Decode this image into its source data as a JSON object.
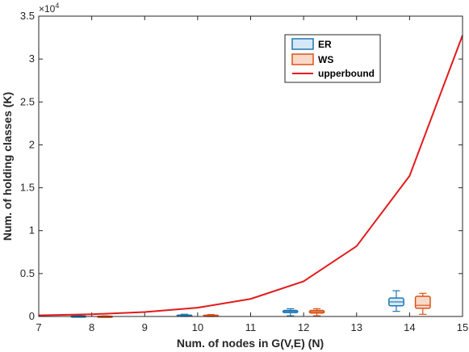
{
  "chart_data": {
    "type": "line",
    "xlabel": "Num. of nodes in G(V,E) (N)",
    "ylabel": "Num. of holding classes (K)",
    "xlim": [
      7,
      15
    ],
    "ylim": [
      0,
      35000
    ],
    "x_ticks": [
      "7",
      "8",
      "9",
      "10",
      "11",
      "12",
      "13",
      "14",
      "15"
    ],
    "y_ticks": [
      "0",
      "0.5",
      "1",
      "1.5",
      "2",
      "2.5",
      "3",
      "3.5"
    ],
    "y_multiplier": "×10",
    "y_multiplier_exp": "4",
    "grid": false,
    "legend_position": "top-right",
    "legend": [
      "ER",
      "WS",
      "upperbound"
    ],
    "series": [
      {
        "name": "upperbound",
        "kind": "line",
        "color": "#e31a1c",
        "x": [
          7,
          8,
          9,
          10,
          11,
          12,
          13,
          14,
          15
        ],
        "y": [
          128,
          256,
          512,
          1024,
          2048,
          4096,
          8192,
          16384,
          32768
        ]
      },
      {
        "name": "ER",
        "kind": "boxplot",
        "color": "#1f77b4",
        "fill": "#d6e8f7",
        "boxes": [
          {
            "n": 8,
            "whisker_low": 0,
            "q1": 20,
            "median": 40,
            "q3": 60,
            "whisker_high": 110
          },
          {
            "n": 10,
            "whisker_low": 0,
            "q1": 60,
            "median": 110,
            "q3": 170,
            "whisker_high": 260
          },
          {
            "n": 12,
            "whisker_low": 80,
            "q1": 450,
            "median": 600,
            "q3": 700,
            "whisker_high": 900
          },
          {
            "n": 14,
            "whisker_low": 600,
            "q1": 1250,
            "median": 1700,
            "q3": 2150,
            "whisker_high": 3000
          }
        ]
      },
      {
        "name": "WS",
        "kind": "boxplot",
        "color": "#d95319",
        "fill": "#fbd9c9",
        "boxes": [
          {
            "n": 8,
            "whisker_low": 0,
            "q1": 10,
            "median": 25,
            "q3": 40,
            "whisker_high": 70
          },
          {
            "n": 10,
            "whisker_low": 0,
            "q1": 40,
            "median": 90,
            "q3": 150,
            "whisker_high": 230
          },
          {
            "n": 12,
            "whisker_low": 80,
            "q1": 400,
            "median": 550,
            "q3": 700,
            "whisker_high": 900
          },
          {
            "n": 14,
            "whisker_low": 250,
            "q1": 950,
            "median": 1300,
            "q3": 2350,
            "whisker_high": 2700
          }
        ]
      }
    ]
  }
}
